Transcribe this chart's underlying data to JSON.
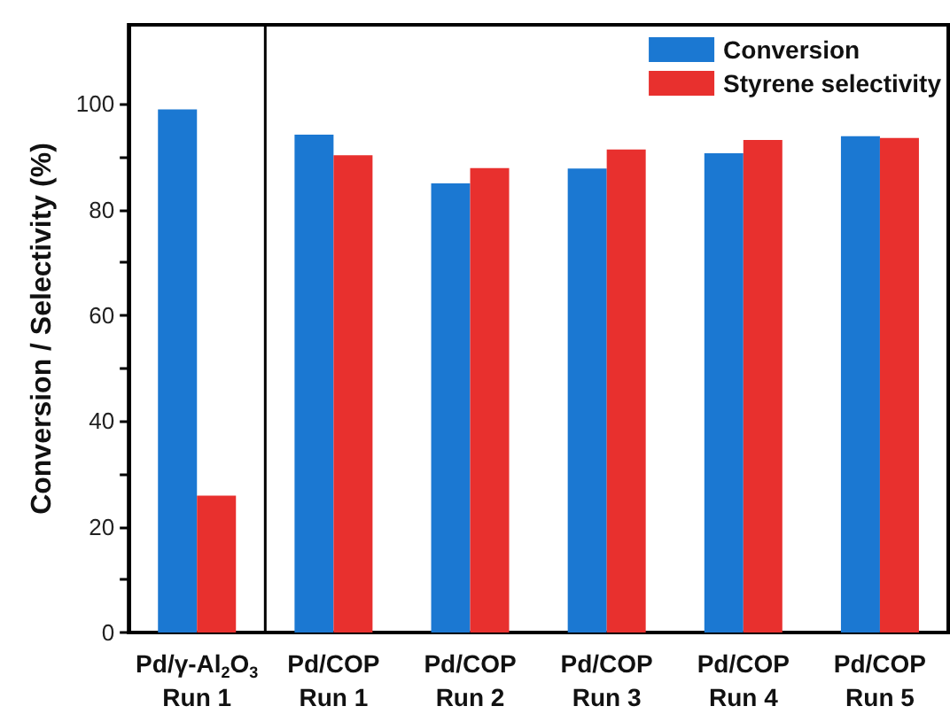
{
  "chart_data": {
    "type": "bar",
    "ylabel": "Conversion / Selectivity (%)",
    "categories": [
      "Pd/γ-Al$_{2}$O$_{3}$\nRun 1",
      "Pd/COP\nRun 1",
      "Pd/COP\nRun 2",
      "Pd/COP\nRun 3",
      "Pd/COP\nRun 4",
      "Pd/COP\nRun 5"
    ],
    "series": [
      {
        "name": "Conversion",
        "color": "#1b78d2",
        "values": [
          99,
          94.2,
          85,
          87.8,
          90.7,
          93.9
        ]
      },
      {
        "name": "Styrene selectivity",
        "color": "#e8302e",
        "values": [
          25.9,
          90.3,
          87.9,
          91.4,
          93.2,
          93.6
        ]
      }
    ],
    "ylim": [
      0,
      115
    ],
    "yticks": [
      0,
      {
        "value": 10,
        "label": null
      },
      20,
      {
        "value": 30,
        "label": null
      },
      40,
      {
        "value": 50,
        "label": null
      },
      60,
      {
        "value": 70,
        "label": null
      },
      80,
      {
        "value": 90,
        "label": null
      },
      100
    ],
    "legend": "top right",
    "grid": false
  }
}
